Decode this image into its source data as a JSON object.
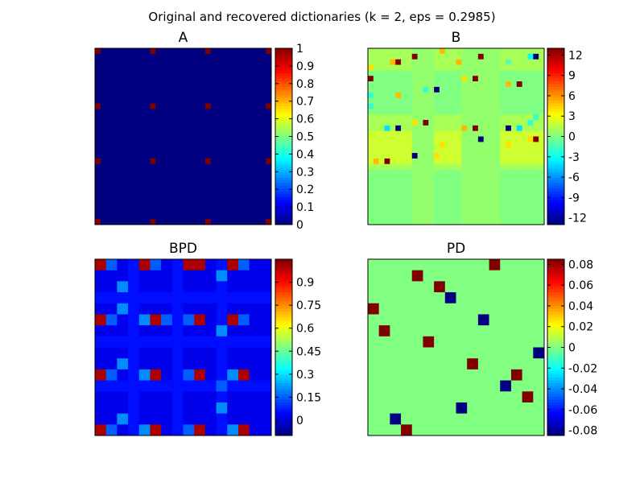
{
  "figure": {
    "suptitle": "Original and recovered dictionaries (k = 2, eps = 0.2985)"
  },
  "chart_data": [
    {
      "type": "heatmap",
      "title": "A",
      "grid_size": 32,
      "colormap": "jet",
      "clim": [
        0,
        1
      ],
      "colorbar_ticks": [
        "0",
        "0.1",
        "0.2",
        "0.3",
        "0.4",
        "0.5",
        "0.6",
        "0.7",
        "0.8",
        "0.9",
        "1"
      ],
      "colorbar_tick_values": [
        0,
        0.1,
        0.2,
        0.3,
        0.4,
        0.5,
        0.6,
        0.7,
        0.8,
        0.9,
        1
      ],
      "background_value": 0,
      "cells": [
        {
          "r": 0,
          "c": 0,
          "v": 1
        },
        {
          "r": 0,
          "c": 10,
          "v": 1
        },
        {
          "r": 0,
          "c": 20,
          "v": 1
        },
        {
          "r": 0,
          "c": 31,
          "v": 1
        },
        {
          "r": 10,
          "c": 0,
          "v": 1
        },
        {
          "r": 10,
          "c": 10,
          "v": 1
        },
        {
          "r": 10,
          "c": 20,
          "v": 1
        },
        {
          "r": 10,
          "c": 31,
          "v": 1
        },
        {
          "r": 20,
          "c": 0,
          "v": 1
        },
        {
          "r": 20,
          "c": 10,
          "v": 1
        },
        {
          "r": 20,
          "c": 20,
          "v": 1
        },
        {
          "r": 20,
          "c": 31,
          "v": 1
        },
        {
          "r": 31,
          "c": 0,
          "v": 1
        },
        {
          "r": 31,
          "c": 10,
          "v": 1
        },
        {
          "r": 31,
          "c": 20,
          "v": 1
        },
        {
          "r": 31,
          "c": 31,
          "v": 1
        }
      ]
    },
    {
      "type": "heatmap",
      "title": "B",
      "grid_size": 32,
      "colormap": "jet",
      "clim": [
        -13,
        13
      ],
      "colorbar_ticks": [
        "12",
        "9",
        "6",
        "3",
        "0",
        "-3",
        "-6",
        "-9",
        "-12"
      ],
      "colorbar_tick_values": [
        12,
        9,
        6,
        3,
        0,
        -3,
        -6,
        -9,
        -12
      ],
      "background_value": 1,
      "bands": [
        {
          "rows": [
            4,
            12
          ],
          "value": 0
        },
        {
          "rows": [
            15,
            21
          ],
          "value": 2
        },
        {
          "rows": [
            22,
            32
          ],
          "value": 0
        },
        {
          "cols": [
            8,
            12
          ],
          "value": 0.5
        },
        {
          "cols": [
            17,
            24
          ],
          "value": 0.5
        }
      ],
      "cells": [
        {
          "r": 0,
          "c": 13,
          "v": 5
        },
        {
          "r": 1,
          "c": 8,
          "v": 13
        },
        {
          "r": 1,
          "c": 20,
          "v": 13
        },
        {
          "r": 1,
          "c": 29,
          "v": -3
        },
        {
          "r": 1,
          "c": 30,
          "v": -13
        },
        {
          "r": 2,
          "c": 4,
          "v": 5
        },
        {
          "r": 2,
          "c": 5,
          "v": 13
        },
        {
          "r": 2,
          "c": 16,
          "v": 5
        },
        {
          "r": 2,
          "c": 25,
          "v": -1
        },
        {
          "r": 3,
          "c": 0,
          "v": 4
        },
        {
          "r": 5,
          "c": 0,
          "v": 13
        },
        {
          "r": 5,
          "c": 17,
          "v": 4
        },
        {
          "r": 5,
          "c": 19,
          "v": 13
        },
        {
          "r": 6,
          "c": 25,
          "v": 5
        },
        {
          "r": 6,
          "c": 27,
          "v": 13
        },
        {
          "r": 7,
          "c": 10,
          "v": -2
        },
        {
          "r": 7,
          "c": 12,
          "v": -13
        },
        {
          "r": 8,
          "c": 0,
          "v": -2
        },
        {
          "r": 8,
          "c": 5,
          "v": 5
        },
        {
          "r": 10,
          "c": 0,
          "v": -2
        },
        {
          "r": 12,
          "c": 30,
          "v": -2
        },
        {
          "r": 13,
          "c": 8,
          "v": 4
        },
        {
          "r": 13,
          "c": 10,
          "v": 13
        },
        {
          "r": 13,
          "c": 29,
          "v": -2
        },
        {
          "r": 14,
          "c": 3,
          "v": -4
        },
        {
          "r": 14,
          "c": 5,
          "v": -13
        },
        {
          "r": 14,
          "c": 17,
          "v": 5
        },
        {
          "r": 14,
          "c": 19,
          "v": 13
        },
        {
          "r": 14,
          "c": 25,
          "v": -13
        },
        {
          "r": 14,
          "c": 27,
          "v": -4
        },
        {
          "r": 16,
          "c": 20,
          "v": -13
        },
        {
          "r": 16,
          "c": 30,
          "v": 13
        },
        {
          "r": 16,
          "c": 29,
          "v": 4
        },
        {
          "r": 17,
          "c": 13,
          "v": 4
        },
        {
          "r": 17,
          "c": 25,
          "v": 4
        },
        {
          "r": 19,
          "c": 8,
          "v": -13
        },
        {
          "r": 19,
          "c": 12,
          "v": 4
        },
        {
          "r": 20,
          "c": 3,
          "v": 13
        },
        {
          "r": 20,
          "c": 1,
          "v": 5
        }
      ]
    },
    {
      "type": "heatmap",
      "title": "BPD",
      "grid_size": 16,
      "colormap": "jet",
      "clim": [
        -0.1,
        1.05
      ],
      "colorbar_ticks": [
        "0.9",
        "0.75",
        "0.6",
        "0.45",
        "0.3",
        "0.15",
        "0"
      ],
      "colorbar_tick_values": [
        0.9,
        0.75,
        0.6,
        0.45,
        0.3,
        0.15,
        0
      ],
      "background_value": 0.02,
      "bands": [
        {
          "rows": [
            3,
            4
          ],
          "value": 0.06
        },
        {
          "rows": [
            7,
            8
          ],
          "value": 0.06
        },
        {
          "rows": [
            11,
            12
          ],
          "value": 0.06
        },
        {
          "cols": [
            3,
            4
          ],
          "value": 0.06
        },
        {
          "cols": [
            7,
            8
          ],
          "value": 0.06
        },
        {
          "cols": [
            11,
            12
          ],
          "value": 0.06
        }
      ],
      "cells": [
        {
          "r": 0,
          "c": 0,
          "v": 1
        },
        {
          "r": 0,
          "c": 1,
          "v": 0.15
        },
        {
          "r": 0,
          "c": 4,
          "v": 1
        },
        {
          "r": 0,
          "c": 5,
          "v": 0.15
        },
        {
          "r": 0,
          "c": 8,
          "v": 1
        },
        {
          "r": 0,
          "c": 9,
          "v": 1
        },
        {
          "r": 0,
          "c": 12,
          "v": 1
        },
        {
          "r": 0,
          "c": 13,
          "v": 0.15
        },
        {
          "r": 1,
          "c": 11,
          "v": 0.2
        },
        {
          "r": 2,
          "c": 2,
          "v": 0.2
        },
        {
          "r": 4,
          "c": 2,
          "v": 0.2
        },
        {
          "r": 5,
          "c": 0,
          "v": 1
        },
        {
          "r": 5,
          "c": 1,
          "v": 0.15
        },
        {
          "r": 5,
          "c": 4,
          "v": 0.2
        },
        {
          "r": 5,
          "c": 5,
          "v": 1
        },
        {
          "r": 5,
          "c": 6,
          "v": 0.15
        },
        {
          "r": 5,
          "c": 8,
          "v": 0.15
        },
        {
          "r": 5,
          "c": 9,
          "v": 1
        },
        {
          "r": 5,
          "c": 12,
          "v": 1
        },
        {
          "r": 5,
          "c": 13,
          "v": 0.15
        },
        {
          "r": 6,
          "c": 11,
          "v": 0.2
        },
        {
          "r": 9,
          "c": 2,
          "v": 0.2
        },
        {
          "r": 10,
          "c": 0,
          "v": 1
        },
        {
          "r": 10,
          "c": 1,
          "v": 0.15
        },
        {
          "r": 10,
          "c": 4,
          "v": 0.2
        },
        {
          "r": 10,
          "c": 5,
          "v": 1
        },
        {
          "r": 10,
          "c": 8,
          "v": 0.15
        },
        {
          "r": 10,
          "c": 9,
          "v": 1
        },
        {
          "r": 10,
          "c": 12,
          "v": 0.2
        },
        {
          "r": 10,
          "c": 13,
          "v": 1
        },
        {
          "r": 11,
          "c": 11,
          "v": 0.15
        },
        {
          "r": 13,
          "c": 11,
          "v": 0.2
        },
        {
          "r": 14,
          "c": 2,
          "v": 0.2
        },
        {
          "r": 15,
          "c": 0,
          "v": 1
        },
        {
          "r": 15,
          "c": 1,
          "v": 0.15
        },
        {
          "r": 15,
          "c": 4,
          "v": 0.2
        },
        {
          "r": 15,
          "c": 5,
          "v": 1
        },
        {
          "r": 15,
          "c": 8,
          "v": 0.15
        },
        {
          "r": 15,
          "c": 9,
          "v": 1
        },
        {
          "r": 15,
          "c": 12,
          "v": 0.2
        },
        {
          "r": 15,
          "c": 13,
          "v": 1
        }
      ]
    },
    {
      "type": "heatmap",
      "title": "PD",
      "grid_size": 16,
      "colormap": "jet",
      "clim": [
        -0.085,
        0.085
      ],
      "colorbar_ticks": [
        "0.08",
        "0.06",
        "0.04",
        "0.02",
        "0",
        "-0.02",
        "-0.04",
        "-0.06",
        "-0.08"
      ],
      "colorbar_tick_values": [
        0.08,
        0.06,
        0.04,
        0.02,
        0,
        -0.02,
        -0.04,
        -0.06,
        -0.08
      ],
      "background_value": 0,
      "cells": [
        {
          "r": 0,
          "c": 11,
          "v": 0.085
        },
        {
          "r": 1,
          "c": 4,
          "v": 0.085
        },
        {
          "r": 2,
          "c": 6,
          "v": 0.085
        },
        {
          "r": 3,
          "c": 7,
          "v": -0.085
        },
        {
          "r": 4,
          "c": 0,
          "v": 0.085
        },
        {
          "r": 5,
          "c": 10,
          "v": -0.085
        },
        {
          "r": 6,
          "c": 1,
          "v": 0.085
        },
        {
          "r": 7,
          "c": 5,
          "v": 0.085
        },
        {
          "r": 8,
          "c": 15,
          "v": -0.085
        },
        {
          "r": 9,
          "c": 9,
          "v": 0.085
        },
        {
          "r": 10,
          "c": 13,
          "v": 0.085
        },
        {
          "r": 11,
          "c": 12,
          "v": -0.085
        },
        {
          "r": 12,
          "c": 14,
          "v": 0.085
        },
        {
          "r": 13,
          "c": 8,
          "v": -0.085
        },
        {
          "r": 14,
          "c": 2,
          "v": -0.085
        },
        {
          "r": 15,
          "c": 3,
          "v": 0.085
        }
      ]
    }
  ]
}
